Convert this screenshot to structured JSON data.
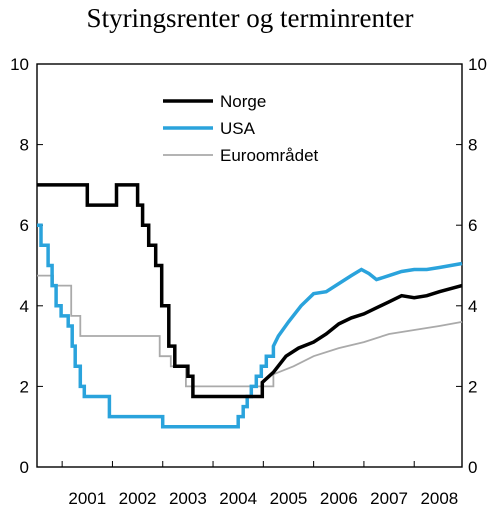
{
  "chart_data": {
    "type": "line",
    "title": "Styringsrenter og terminrenter",
    "xlabel": "",
    "ylabel": "",
    "xlim": [
      2000.5,
      2008.95
    ],
    "ylim": [
      0,
      10
    ],
    "y_ticks": [
      0,
      2,
      4,
      6,
      8,
      10
    ],
    "x_ticks": [
      "2001",
      "2002",
      "2003",
      "2004",
      "2005",
      "2006",
      "2007",
      "2008"
    ],
    "grid": false,
    "legend_position": "top-left",
    "series": [
      {
        "name": "Norge",
        "color": "#000000",
        "line_width": 3.5,
        "points": [
          [
            2000.5,
            7.0
          ],
          [
            2001.5,
            7.0
          ],
          [
            2001.5,
            6.5
          ],
          [
            2002.08,
            6.5
          ],
          [
            2002.08,
            7.0
          ],
          [
            2002.5,
            7.0
          ],
          [
            2002.5,
            6.5
          ],
          [
            2002.6,
            6.5
          ],
          [
            2002.6,
            6.0
          ],
          [
            2002.72,
            6.0
          ],
          [
            2002.72,
            5.5
          ],
          [
            2002.86,
            5.5
          ],
          [
            2002.86,
            5.0
          ],
          [
            2002.98,
            5.0
          ],
          [
            2002.98,
            4.0
          ],
          [
            2003.12,
            4.0
          ],
          [
            2003.12,
            3.0
          ],
          [
            2003.24,
            3.0
          ],
          [
            2003.24,
            2.5
          ],
          [
            2003.5,
            2.5
          ],
          [
            2003.5,
            2.25
          ],
          [
            2003.6,
            2.25
          ],
          [
            2003.6,
            1.75
          ],
          [
            2004.98,
            1.75
          ],
          [
            2004.98,
            2.1
          ],
          [
            2005.2,
            2.35
          ],
          [
            2005.45,
            2.75
          ],
          [
            2005.7,
            2.95
          ],
          [
            2006.0,
            3.1
          ],
          [
            2006.25,
            3.3
          ],
          [
            2006.5,
            3.55
          ],
          [
            2006.75,
            3.7
          ],
          [
            2007.0,
            3.8
          ],
          [
            2007.25,
            3.95
          ],
          [
            2007.5,
            4.1
          ],
          [
            2007.75,
            4.25
          ],
          [
            2008.0,
            4.2
          ],
          [
            2008.25,
            4.25
          ],
          [
            2008.5,
            4.35
          ],
          [
            2008.95,
            4.5
          ]
        ]
      },
      {
        "name": "USA",
        "color": "#2aa3dc",
        "line_width": 3.5,
        "points": [
          [
            2000.5,
            6.0
          ],
          [
            2000.58,
            6.0
          ],
          [
            2000.58,
            5.5
          ],
          [
            2000.72,
            5.5
          ],
          [
            2000.72,
            5.0
          ],
          [
            2000.8,
            5.0
          ],
          [
            2000.8,
            4.5
          ],
          [
            2000.88,
            4.5
          ],
          [
            2000.88,
            4.0
          ],
          [
            2000.98,
            4.0
          ],
          [
            2000.98,
            3.75
          ],
          [
            2001.12,
            3.75
          ],
          [
            2001.12,
            3.5
          ],
          [
            2001.2,
            3.5
          ],
          [
            2001.2,
            3.0
          ],
          [
            2001.26,
            3.0
          ],
          [
            2001.26,
            2.5
          ],
          [
            2001.36,
            2.5
          ],
          [
            2001.36,
            2.0
          ],
          [
            2001.44,
            2.0
          ],
          [
            2001.44,
            1.75
          ],
          [
            2001.94,
            1.75
          ],
          [
            2001.94,
            1.25
          ],
          [
            2003.0,
            1.25
          ],
          [
            2003.0,
            1.0
          ],
          [
            2004.5,
            1.0
          ],
          [
            2004.5,
            1.25
          ],
          [
            2004.6,
            1.25
          ],
          [
            2004.6,
            1.5
          ],
          [
            2004.68,
            1.5
          ],
          [
            2004.68,
            1.75
          ],
          [
            2004.76,
            1.75
          ],
          [
            2004.76,
            2.0
          ],
          [
            2004.86,
            2.0
          ],
          [
            2004.86,
            2.25
          ],
          [
            2004.96,
            2.25
          ],
          [
            2004.96,
            2.5
          ],
          [
            2005.06,
            2.5
          ],
          [
            2005.06,
            2.75
          ],
          [
            2005.2,
            2.75
          ],
          [
            2005.2,
            3.0
          ],
          [
            2005.3,
            3.25
          ],
          [
            2005.5,
            3.6
          ],
          [
            2005.75,
            4.0
          ],
          [
            2006.0,
            4.3
          ],
          [
            2006.25,
            4.35
          ],
          [
            2006.5,
            4.55
          ],
          [
            2006.75,
            4.75
          ],
          [
            2006.95,
            4.9
          ],
          [
            2007.1,
            4.8
          ],
          [
            2007.25,
            4.65
          ],
          [
            2007.5,
            4.75
          ],
          [
            2007.75,
            4.85
          ],
          [
            2008.0,
            4.9
          ],
          [
            2008.25,
            4.9
          ],
          [
            2008.5,
            4.95
          ],
          [
            2008.95,
            5.05
          ]
        ]
      },
      {
        "name": "Euroområdet",
        "color": "#aaaaaa",
        "line_width": 1.8,
        "points": [
          [
            2000.5,
            4.75
          ],
          [
            2000.82,
            4.75
          ],
          [
            2000.82,
            4.5
          ],
          [
            2001.18,
            4.5
          ],
          [
            2001.18,
            3.75
          ],
          [
            2001.36,
            3.75
          ],
          [
            2001.36,
            3.25
          ],
          [
            2002.94,
            3.25
          ],
          [
            2002.94,
            2.75
          ],
          [
            2003.16,
            2.75
          ],
          [
            2003.16,
            2.5
          ],
          [
            2003.46,
            2.5
          ],
          [
            2003.46,
            2.0
          ],
          [
            2005.2,
            2.0
          ],
          [
            2005.2,
            2.3
          ],
          [
            2005.6,
            2.5
          ],
          [
            2006.0,
            2.75
          ],
          [
            2006.5,
            2.95
          ],
          [
            2007.0,
            3.1
          ],
          [
            2007.5,
            3.3
          ],
          [
            2008.0,
            3.4
          ],
          [
            2008.5,
            3.5
          ],
          [
            2008.95,
            3.6
          ]
        ]
      }
    ]
  }
}
